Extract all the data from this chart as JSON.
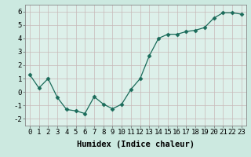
{
  "x": [
    0,
    1,
    2,
    3,
    4,
    5,
    6,
    7,
    8,
    9,
    10,
    11,
    12,
    13,
    14,
    15,
    16,
    17,
    18,
    19,
    20,
    21,
    22,
    23
  ],
  "y": [
    1.3,
    0.3,
    1.0,
    -0.4,
    -1.3,
    -1.4,
    -1.6,
    -0.35,
    -0.9,
    -1.25,
    -0.9,
    0.2,
    1.0,
    2.7,
    4.0,
    4.3,
    4.3,
    4.5,
    4.6,
    4.8,
    5.5,
    5.9,
    5.9,
    5.8
  ],
  "line_color": "#1a6b5a",
  "marker": "D",
  "marker_size": 2.5,
  "background_color": "#cce9e0",
  "plot_bg_color": "#ddf0ea",
  "grid_color": "#c8b8b8",
  "xlabel": "Humidex (Indice chaleur)",
  "xlabel_fontsize": 7.5,
  "tick_fontsize": 6.5,
  "ylim": [
    -2.5,
    6.5
  ],
  "xlim": [
    -0.5,
    23.5
  ],
  "yticks": [
    -2,
    -1,
    0,
    1,
    2,
    3,
    4,
    5,
    6
  ],
  "xticks": [
    0,
    1,
    2,
    3,
    4,
    5,
    6,
    7,
    8,
    9,
    10,
    11,
    12,
    13,
    14,
    15,
    16,
    17,
    18,
    19,
    20,
    21,
    22,
    23
  ]
}
